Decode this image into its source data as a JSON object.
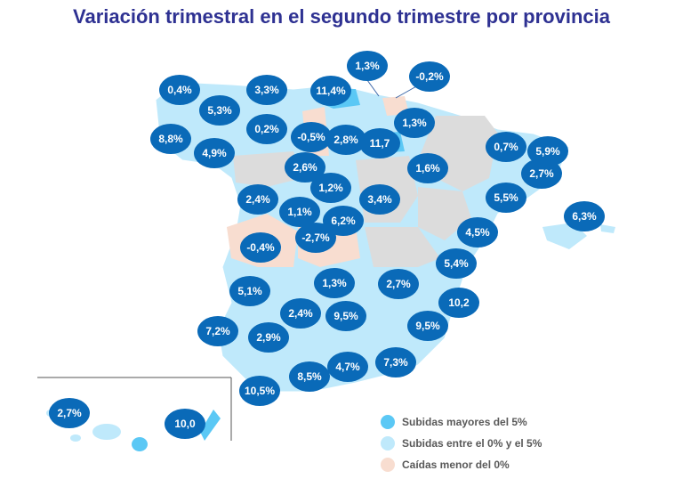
{
  "title": "Variación trimestral en el segundo trimestre por provincia",
  "colors": {
    "high": "#5bc8f5",
    "mid": "#bfe9fb",
    "drop": "#f8ddd0",
    "nodata": "#dcdcdc",
    "bubble": "#0a6ab8"
  },
  "provinces": [
    "0,4%",
    "3,3%",
    "11,4%",
    "1,3%",
    "-0,2%",
    "5,3%",
    "0,2%",
    "-0,5%",
    "2,8%",
    "11,7",
    "1,3%",
    "8,8%",
    "4,9%",
    "0,7%",
    "5,9%",
    "2,7%",
    "2,6%",
    "1,6%",
    "1,2%",
    "2,4%",
    "3,4%",
    "5,5%",
    "1,1%",
    "6,2%",
    "6,3%",
    "-2,7%",
    "-0,4%",
    "4,5%",
    "5,4%",
    "5,1%",
    "1,3%",
    "2,7%",
    "10,2",
    "2,4%",
    "9,5%",
    "9,5%",
    "7,2%",
    "2,9%",
    "7,3%",
    "4,7%",
    "8,5%",
    "10,5%",
    "2,7%",
    "10,0"
  ],
  "legend": [
    {
      "label": "Subidas mayores del 5%",
      "color": "#5bc8f5"
    },
    {
      "label": "Subidas entre el 0% y el 5%",
      "color": "#bfe9fb"
    },
    {
      "label": "Caídas menor del 0%",
      "color": "#f8ddd0"
    }
  ]
}
